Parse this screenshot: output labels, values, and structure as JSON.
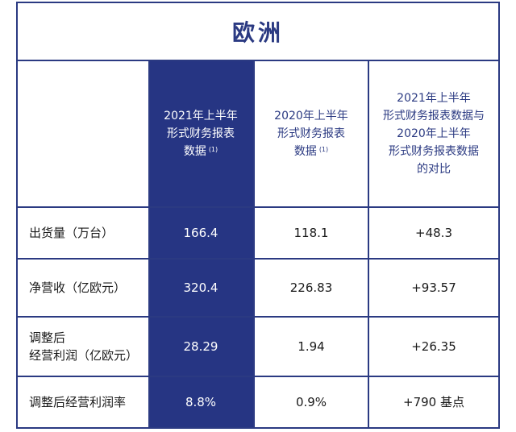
{
  "title": "欧洲",
  "headers": {
    "h2021": [
      "2021年上半年",
      "形式财务报表",
      "数据"
    ],
    "h2021_note": "(1)",
    "h2020": [
      "2020年上半年",
      "形式财务报表",
      "数据"
    ],
    "h2020_note": "(1)",
    "compare": [
      "2021年上半年",
      "形式财务报表数据与",
      "2020年上半年",
      "形式财务报表数据",
      "的对比"
    ]
  },
  "rows": [
    {
      "label": [
        "出货量（万台）"
      ],
      "v2021": "166.4",
      "v2020": "118.1",
      "diff": "+48.3"
    },
    {
      "label": [
        "净营收（亿欧元）"
      ],
      "v2021": "320.4",
      "v2020": "226.83",
      "diff": "+93.57"
    },
    {
      "label": [
        "调整后",
        "经营利润（亿欧元）"
      ],
      "v2021": "28.29",
      "v2020": "1.94",
      "diff": "+26.35"
    },
    {
      "label": [
        "调整后经营利润率"
      ],
      "v2021": "8.8%",
      "v2020": "0.9%",
      "diff": "+790 基点"
    }
  ],
  "colors": {
    "accent": "#2b3a82",
    "highlight": "#263583"
  }
}
